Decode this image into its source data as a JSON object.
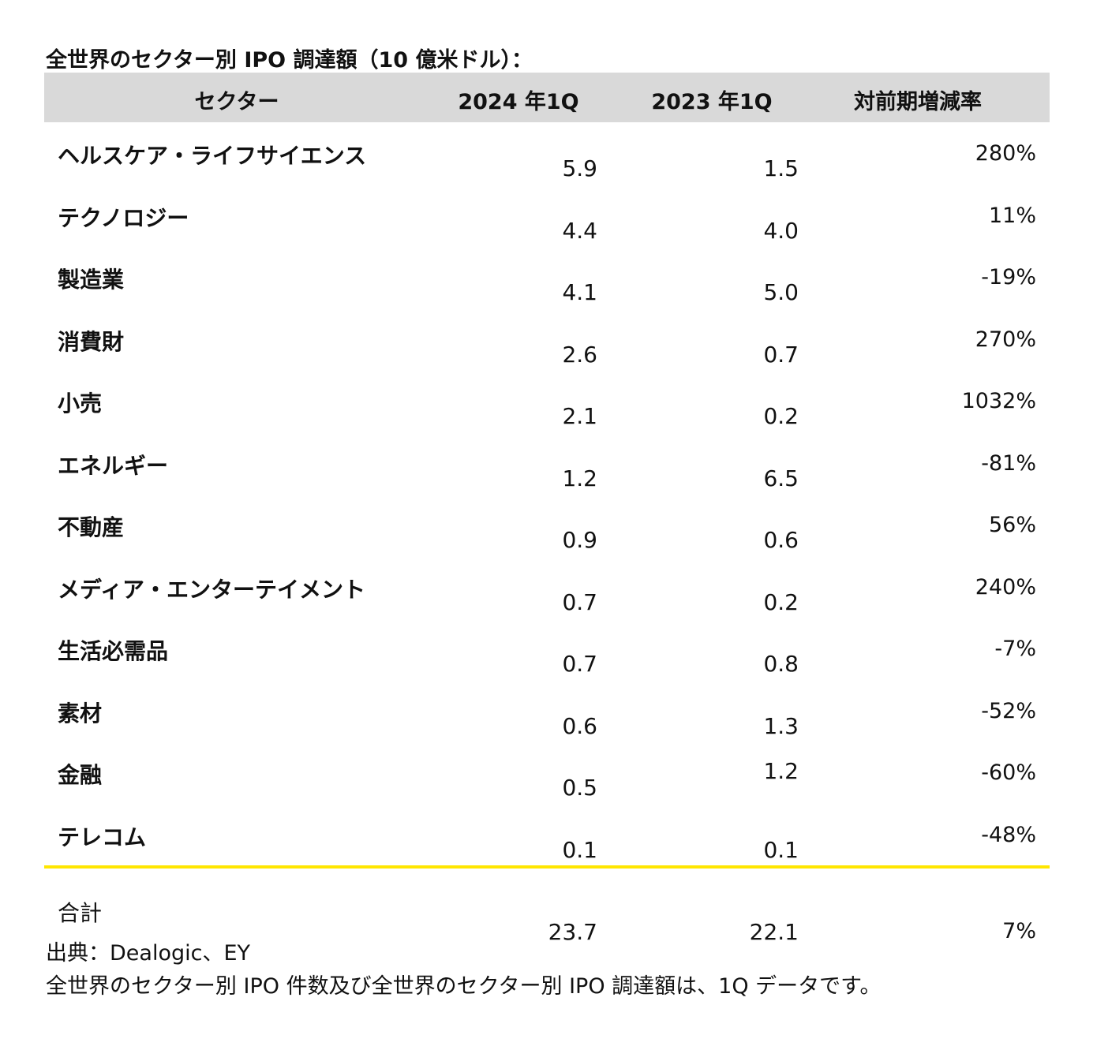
{
  "title": "全世界のセクター別 IPO 調達額（10 億米ドル）：",
  "header": {
    "sector": "セクター",
    "y2024": "2024 年1Q",
    "y2023": "2023 年1Q",
    "change": "対前期増減率"
  },
  "rows": [
    {
      "sector": "ヘルスケア・ライフサイエンス",
      "y2024": "5.9",
      "y2023": "1.5",
      "change": "280%"
    },
    {
      "sector": "テクノロジー",
      "y2024": "4.4",
      "y2023": "4.0",
      "change": "11%"
    },
    {
      "sector": "製造業",
      "y2024": "4.1",
      "y2023": "5.0",
      "change": "-19%"
    },
    {
      "sector": "消費財",
      "y2024": "2.6",
      "y2023": "0.7",
      "change": "270%"
    },
    {
      "sector": "小売",
      "y2024": "2.1",
      "y2023": "0.2",
      "change": "1032%"
    },
    {
      "sector": "エネルギー",
      "y2024": "1.2",
      "y2023": "6.5",
      "change": "-81%"
    },
    {
      "sector": "不動産",
      "y2024": "0.9",
      "y2023": "0.6",
      "change": "56%"
    },
    {
      "sector": "メディア・エンターテイメント",
      "y2024": "0.7",
      "y2023": "0.2",
      "change": "240%"
    },
    {
      "sector": "生活必需品",
      "y2024": "0.7",
      "y2023": "0.8",
      "change": "-7%"
    },
    {
      "sector": "素材",
      "y2024": "0.6",
      "y2023": "1.3",
      "change": "-52%"
    },
    {
      "sector": "金融",
      "y2024": "0.5",
      "y2023": "1.2",
      "change": "-60%"
    },
    {
      "sector": "テレコム",
      "y2024": "0.1",
      "y2023": "0.1",
      "change": "-48%"
    }
  ],
  "total": {
    "label": "合計",
    "y2024": "23.7",
    "y2023": "22.1",
    "change": "7%"
  },
  "source": "出典：Dealogic、EY",
  "note": "全世界のセクター別 IPO 件数及び全世界のセクター別 IPO 調達額は、1Q データです。",
  "colors": {
    "header_bg": "#d9d9d9",
    "accent_line": "#ffe600"
  }
}
